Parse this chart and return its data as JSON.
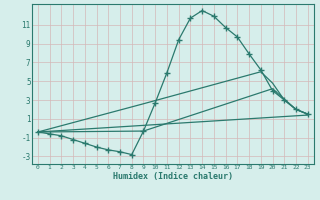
{
  "xlabel": "Humidex (Indice chaleur)",
  "xlim": [
    -0.5,
    23.5
  ],
  "ylim": [
    -3.8,
    13.2
  ],
  "yticks": [
    -3,
    -1,
    1,
    3,
    5,
    7,
    9,
    11
  ],
  "xticks": [
    0,
    1,
    2,
    3,
    4,
    5,
    6,
    7,
    8,
    9,
    10,
    11,
    12,
    13,
    14,
    15,
    16,
    17,
    18,
    19,
    20,
    21,
    22,
    23
  ],
  "bg_color": "#d6eeeb",
  "grid_color": "#c0dbd6",
  "line_color": "#2b7a6e",
  "main_curve_x": [
    0,
    1,
    2,
    3,
    4,
    5,
    6,
    7,
    8,
    9,
    10,
    11,
    12,
    13,
    14,
    15,
    16,
    17,
    18,
    19,
    20,
    21,
    22,
    23
  ],
  "main_curve_y": [
    -0.4,
    -0.6,
    -0.8,
    -1.2,
    -1.6,
    -2.0,
    -2.3,
    -2.5,
    -2.8,
    -0.3,
    2.7,
    5.9,
    9.4,
    11.7,
    12.5,
    11.9,
    10.7,
    9.7,
    7.9,
    6.2,
    4.0,
    3.0,
    2.0,
    1.5
  ],
  "line1_x": [
    0,
    23
  ],
  "line1_y": [
    -0.4,
    1.4
  ],
  "line2_x": [
    0,
    9,
    20,
    21,
    22,
    23
  ],
  "line2_y": [
    -0.4,
    -0.3,
    4.2,
    3.1,
    2.0,
    1.5
  ],
  "line3_x": [
    0,
    9,
    19,
    20,
    21,
    22,
    23
  ],
  "line3_y": [
    -0.4,
    2.6,
    6.0,
    4.8,
    3.0,
    2.0,
    1.5
  ]
}
